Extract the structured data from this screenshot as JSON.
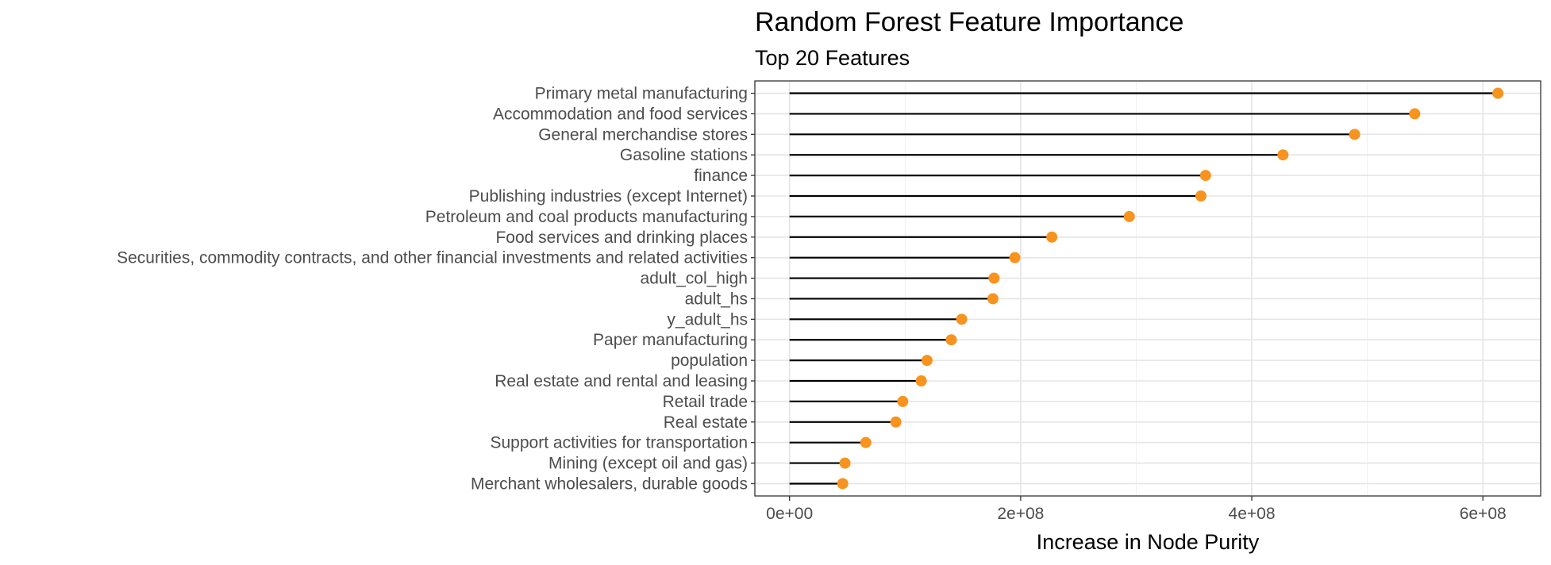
{
  "chart_data": {
    "type": "lollipop",
    "title": "Random Forest Feature Importance",
    "subtitle": "Top 20 Features",
    "xlabel": "Increase in Node Purity",
    "ylabel": "",
    "xlim": [
      -30000000.0,
      650000000.0
    ],
    "x_ticks": [
      0,
      200000000,
      400000000,
      600000000
    ],
    "x_tick_labels": [
      "0e+00",
      "2e+08",
      "4e+08",
      "6e+08"
    ],
    "grid": true,
    "point_color": "#F7931E",
    "segment_color": "#000000",
    "categories": [
      "Primary metal manufacturing",
      "Accommodation and food services",
      "General merchandise stores",
      "Gasoline stations",
      "finance",
      "Publishing industries (except Internet)",
      "Petroleum and coal products manufacturing",
      "Food services and drinking places",
      "Securities, commodity contracts, and other financial investments and related activities",
      "adult_col_high",
      "adult_hs",
      "y_adult_hs",
      "Paper manufacturing",
      "population",
      "Real estate and rental and leasing",
      "Retail trade",
      "Real estate",
      "Support activities for transportation",
      "Mining (except oil and gas)",
      "Merchant wholesalers, durable goods"
    ],
    "values": [
      613000000,
      541000000,
      489000000,
      427000000,
      360000000,
      356000000,
      294000000,
      227000000,
      195000000,
      177000000,
      176000000,
      149000000,
      140000000,
      119000000,
      114000000,
      98000000,
      92000000,
      66000000,
      48000000,
      46000000
    ]
  }
}
